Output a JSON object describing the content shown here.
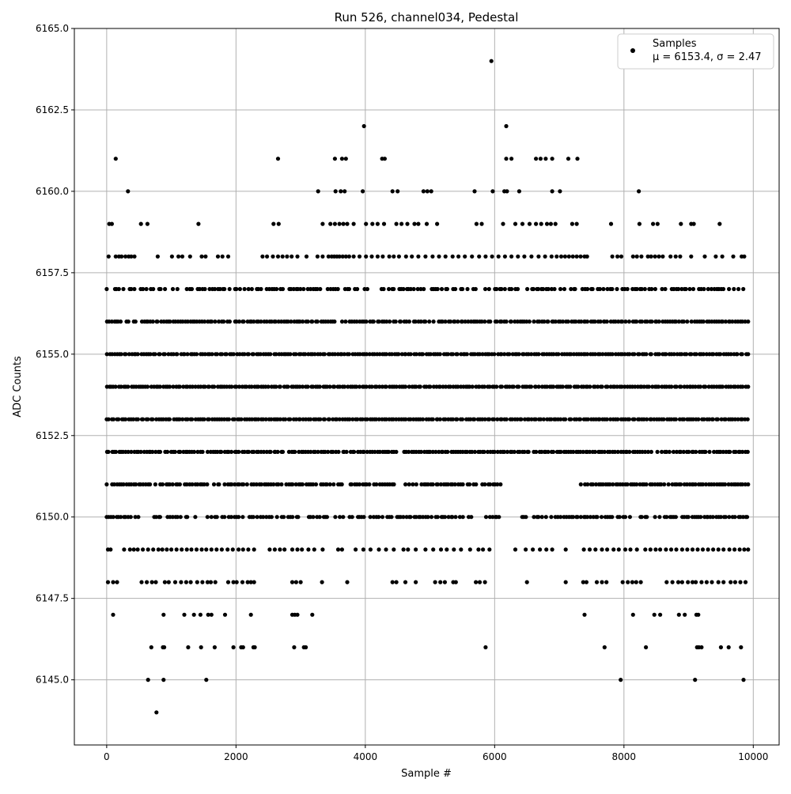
{
  "chart_data": {
    "type": "scatter",
    "title": "Run 526, channel034, Pedestal",
    "xlabel": "Sample #",
    "ylabel": "ADC Counts",
    "xlim": [
      -500,
      10400
    ],
    "ylim": [
      6143,
      6165
    ],
    "x_ticks": [
      0,
      2000,
      4000,
      6000,
      8000,
      10000
    ],
    "x_tick_labels": [
      "0",
      "2000",
      "4000",
      "6000",
      "8000",
      "10000"
    ],
    "y_ticks": [
      6145.0,
      6147.5,
      6150.0,
      6152.5,
      6155.0,
      6157.5,
      6160.0,
      6162.5,
      6165.0
    ],
    "y_tick_labels": [
      "6145.0",
      "6147.5",
      "6150.0",
      "6152.5",
      "6155.0",
      "6157.5",
      "6160.0",
      "6162.5",
      "6165.0"
    ],
    "grid": true,
    "legend": {
      "placement": "top-right",
      "entries": [
        {
          "label": "Samples",
          "stat_label": "μ = 6153.4, σ = 2.47"
        }
      ]
    },
    "series": [
      {
        "name": "Samples",
        "color": "#000000",
        "marker": "circle",
        "levels": [
          {
            "y": 6144,
            "x": [
              770
            ]
          },
          {
            "y": 6145,
            "x": [
              640,
              880,
              1540,
              7950,
              9100,
              9850
            ]
          },
          {
            "y": 6146,
            "x": [
              690,
              870,
              890,
              1260,
              1460,
              1670,
              1960,
              2080,
              2110,
              2270,
              2290,
              2900,
              3050,
              3080,
              5860,
              7700,
              8340,
              9130,
              9160,
              9200,
              9500,
              9620,
              9810
            ]
          },
          {
            "y": 6147,
            "x": [
              100,
              880,
              1200,
              1350,
              1450,
              1570,
              1620,
              1830,
              2230,
              2870,
              2910,
              2950,
              3180,
              7390,
              8140,
              8470,
              8560,
              8850,
              8940,
              9120,
              9150
            ]
          },
          {
            "y": 6148,
            "x": [
              20,
              100,
              160,
              540,
              620,
              700,
              760,
              900,
              960,
              1060,
              1150,
              1230,
              1300,
              1400,
              1480,
              1560,
              1610,
              1680,
              1880,
              1960,
              2010,
              2100,
              2180,
              2230,
              2280,
              2870,
              2930,
              3000,
              3330,
              3720,
              4420,
              4480,
              4620,
              4780,
              5080,
              5160,
              5230,
              5360,
              5400,
              5710,
              5770,
              5850,
              6500,
              7100,
              7370,
              7420,
              7580,
              7660,
              7730,
              7980,
              8060,
              8130,
              8190,
              8260,
              8660,
              8750,
              8840,
              8900,
              8990,
              9060,
              9110,
              9200,
              9280,
              9360,
              9460,
              9540,
              9650,
              9720,
              9800,
              9880
            ]
          },
          {
            "y": 6149,
            "x": [
              20,
              60,
              270,
              360,
              420,
              480,
              560,
              640,
              720,
              800,
              860,
              930,
              1000,
              1080,
              1160,
              1240,
              1310,
              1390,
              1470,
              1540,
              1620,
              1700,
              1780,
              1870,
              1950,
              2040,
              2110,
              2190,
              2280,
              2520,
              2600,
              2680,
              2750,
              2870,
              2950,
              3020,
              3120,
              3210,
              3340,
              3580,
              3640,
              3850,
              3970,
              4080,
              4210,
              4320,
              4440,
              4590,
              4660,
              4780,
              4930,
              5050,
              5170,
              5260,
              5370,
              5480,
              5620,
              5750,
              5820,
              5920,
              6320,
              6480,
              6590,
              6700,
              6800,
              6890,
              7100,
              7380,
              7470,
              7560,
              7660,
              7740,
              7840,
              7920,
              8020,
              8100,
              8200,
              8330,
              8410,
              8490,
              8560,
              8650,
              8730,
              8810,
              8900,
              8980,
              9060,
              9140,
              9220,
              9300,
              9380,
              9460,
              9540,
              9630,
              9710,
              9790,
              9860,
              9920
            ]
          }
        ],
        "continuous_bands": [
          {
            "y": 6150,
            "density": 0.78,
            "gaps": [
              [
                6100,
                6400
              ]
            ]
          },
          {
            "y": 6151,
            "density": 0.9,
            "gaps": [
              [
                3650,
                3760
              ],
              [
                6100,
                7150
              ],
              [
                7150,
                7300
              ]
            ]
          },
          {
            "y": 6152,
            "density": 0.97,
            "gaps": [
              [
                4520,
                4580
              ]
            ]
          },
          {
            "y": 6153,
            "density": 1.0,
            "gaps": []
          },
          {
            "y": 6154,
            "density": 1.0,
            "gaps": []
          },
          {
            "y": 6155,
            "density": 1.0,
            "gaps": []
          },
          {
            "y": 6156,
            "density": 0.92,
            "gaps": []
          },
          {
            "y": 6157,
            "density": 0.72,
            "gaps": []
          }
        ],
        "upper_levels": [
          {
            "y": 6158,
            "x": [
              30,
              140,
              190,
              230,
              290,
              340,
              380,
              430,
              790,
              1010,
              1110,
              1170,
              1290,
              1470,
              1530,
              1720,
              1790,
              1880,
              2410,
              2480,
              2570,
              2650,
              2720,
              2790,
              2860,
              2950,
              3090,
              3260,
              3340,
              3430,
              3480,
              3520,
              3560,
              3600,
              3650,
              3700,
              3750,
              3820,
              3910,
              4010,
              4100,
              4190,
              4270,
              4370,
              4440,
              4520,
              4630,
              4720,
              4820,
              4930,
              5040,
              5140,
              5240,
              5350,
              5440,
              5540,
              5650,
              5760,
              5860,
              5960,
              6060,
              6160,
              6260,
              6360,
              6460,
              6570,
              6680,
              6780,
              6880,
              6960,
              7030,
              7090,
              7150,
              7210,
              7270,
              7330,
              7390,
              7430,
              7820,
              7900,
              7960,
              8140,
              8200,
              8270,
              8370,
              8420,
              8480,
              8540,
              8600,
              8720,
              8800,
              8870,
              9040,
              9250,
              9420,
              9520,
              9690,
              9820,
              9860
            ]
          },
          {
            "y": 6159,
            "x": [
              40,
              80,
              530,
              630,
              1420,
              2580,
              2660,
              3340,
              3460,
              3530,
              3600,
              3660,
              3720,
              3820,
              4010,
              4110,
              4190,
              4290,
              4480,
              4560,
              4650,
              4760,
              4820,
              4950,
              5110,
              5720,
              5800,
              6130,
              6320,
              6430,
              6540,
              6640,
              6720,
              6810,
              6870,
              6940,
              7200,
              7270,
              7800,
              8240,
              8450,
              8520,
              8880,
              9040,
              9080,
              9480
            ]
          },
          {
            "y": 6160,
            "x": [
              330,
              3270,
              3540,
              3620,
              3680,
              3960,
              4420,
              4500,
              4900,
              4960,
              5020,
              5690,
              5970,
              6150,
              6190,
              6380,
              6890,
              7010,
              8230
            ]
          },
          {
            "y": 6161,
            "x": [
              140,
              2650,
              3530,
              3640,
              3700,
              4260,
              4300,
              6180,
              6260,
              6640,
              6710,
              6790,
              6890,
              7140,
              7280
            ]
          },
          {
            "y": 6162,
            "x": [
              3980,
              6180
            ]
          },
          {
            "y": 6164,
            "x": [
              5950
            ]
          }
        ],
        "x_extent": [
          0,
          9920
        ]
      }
    ]
  }
}
